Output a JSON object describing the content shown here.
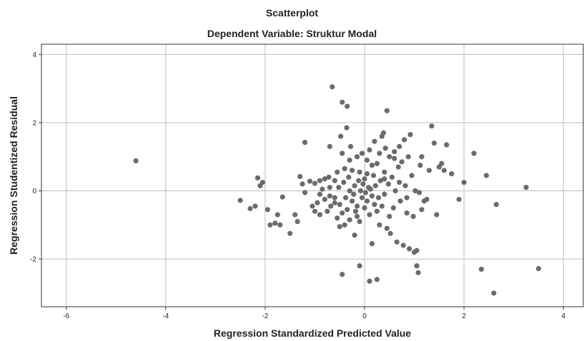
{
  "chart_data": {
    "type": "scatter",
    "title": "Scatterplot",
    "subtitle": "Dependent Variable: Struktur Modal",
    "xlabel": "Regression Standardized Predicted Value",
    "ylabel": "Regression Studentized Residual",
    "xlim": [
      -6.5,
      4.4
    ],
    "ylim": [
      -3.4,
      4.3
    ],
    "x_ticks": [
      -6,
      -4,
      -2,
      0,
      2,
      4
    ],
    "y_ticks": [
      -2,
      0,
      2,
      4
    ],
    "grid": true,
    "point_color": "#6b6b6b",
    "points": [
      [
        -4.6,
        0.88
      ],
      [
        -2.5,
        -0.28
      ],
      [
        -2.3,
        -0.52
      ],
      [
        -2.2,
        -0.45
      ],
      [
        -2.15,
        0.38
      ],
      [
        -2.1,
        0.15
      ],
      [
        -2.05,
        0.25
      ],
      [
        -1.95,
        -0.55
      ],
      [
        -1.9,
        -1.0
      ],
      [
        -1.8,
        -0.95
      ],
      [
        -1.75,
        -0.7
      ],
      [
        -1.7,
        -1.0
      ],
      [
        -1.65,
        -0.18
      ],
      [
        -1.5,
        -1.25
      ],
      [
        -1.4,
        -0.7
      ],
      [
        -1.35,
        -0.9
      ],
      [
        -1.3,
        0.42
      ],
      [
        -1.25,
        0.2
      ],
      [
        -1.2,
        1.42
      ],
      [
        -1.2,
        -0.05
      ],
      [
        -1.1,
        0.28
      ],
      [
        -1.05,
        -0.45
      ],
      [
        -1.0,
        0.22
      ],
      [
        -0.95,
        -0.35
      ],
      [
        -0.9,
        0.3
      ],
      [
        -0.9,
        -0.7
      ],
      [
        -0.85,
        0.05
      ],
      [
        -0.8,
        -0.25
      ],
      [
        -0.8,
        0.35
      ],
      [
        -0.75,
        -0.6
      ],
      [
        -0.72,
        0.4
      ],
      [
        -0.7,
        0.1
      ],
      [
        -0.7,
        1.3
      ],
      [
        -0.68,
        -0.45
      ],
      [
        -0.65,
        3.05
      ],
      [
        -0.6,
        -0.2
      ],
      [
        -0.6,
        0.3
      ],
      [
        -0.55,
        -0.8
      ],
      [
        -0.52,
        0.1
      ],
      [
        -0.5,
        -1.05
      ],
      [
        -0.5,
        -0.4
      ],
      [
        -0.48,
        1.6
      ],
      [
        -0.45,
        2.6
      ],
      [
        -0.45,
        1.1
      ],
      [
        -0.45,
        -0.65
      ],
      [
        -0.42,
        0.25
      ],
      [
        -0.4,
        -1.0
      ],
      [
        -0.4,
        0.65
      ],
      [
        -0.38,
        -0.2
      ],
      [
        -0.36,
        1.85
      ],
      [
        -0.35,
        2.48
      ],
      [
        -0.35,
        -0.55
      ],
      [
        -0.32,
        0.4
      ],
      [
        -0.3,
        -0.85
      ],
      [
        -0.3,
        0.0
      ],
      [
        -0.28,
        1.3
      ],
      [
        -0.25,
        -0.3
      ],
      [
        -0.25,
        0.6
      ],
      [
        -0.22,
        -0.1
      ],
      [
        -0.2,
        -1.3
      ],
      [
        -0.2,
        0.15
      ],
      [
        -0.18,
        -0.6
      ],
      [
        -0.15,
        1.0
      ],
      [
        -0.15,
        -0.45
      ],
      [
        -0.12,
        0.3
      ],
      [
        -0.1,
        -0.9
      ],
      [
        -0.1,
        0.55
      ],
      [
        -0.08,
        0.0
      ],
      [
        -0.05,
        1.1
      ],
      [
        -0.05,
        -0.2
      ],
      [
        -0.03,
        0.2
      ],
      [
        0.0,
        -0.5
      ],
      [
        0.0,
        0.35
      ],
      [
        0.02,
        -0.05
      ],
      [
        0.05,
        0.9
      ],
      [
        0.05,
        -0.3
      ],
      [
        0.08,
        0.1
      ],
      [
        0.1,
        -0.7
      ],
      [
        0.1,
        1.2
      ],
      [
        0.12,
        0.05
      ],
      [
        0.15,
        -0.15
      ],
      [
        0.15,
        -1.55
      ],
      [
        0.18,
        0.45
      ],
      [
        0.2,
        -0.4
      ],
      [
        0.2,
        1.45
      ],
      [
        0.22,
        0.15
      ],
      [
        0.25,
        -0.6
      ],
      [
        0.25,
        0.8
      ],
      [
        0.28,
        -0.2
      ],
      [
        0.3,
        1.1
      ],
      [
        0.3,
        -1.0
      ],
      [
        0.32,
        0.3
      ],
      [
        0.35,
        -0.45
      ],
      [
        0.35,
        1.6
      ],
      [
        0.38,
        1.7
      ],
      [
        0.4,
        -0.1
      ],
      [
        0.4,
        0.55
      ],
      [
        0.42,
        1.25
      ],
      [
        0.45,
        -1.1
      ],
      [
        0.45,
        2.35
      ],
      [
        0.48,
        0.2
      ],
      [
        0.5,
        -0.75
      ],
      [
        0.5,
        1.0
      ],
      [
        0.52,
        -1.25
      ],
      [
        0.55,
        0.4
      ],
      [
        0.58,
        -0.5
      ],
      [
        0.6,
        1.15
      ],
      [
        0.62,
        0.0
      ],
      [
        0.65,
        -1.5
      ],
      [
        0.68,
        0.7
      ],
      [
        0.7,
        1.3
      ],
      [
        0.72,
        -0.3
      ],
      [
        0.75,
        0.85
      ],
      [
        0.78,
        -1.6
      ],
      [
        0.8,
        1.5
      ],
      [
        0.82,
        0.15
      ],
      [
        0.85,
        -0.65
      ],
      [
        0.88,
        1.0
      ],
      [
        0.9,
        -1.7
      ],
      [
        0.92,
        1.65
      ],
      [
        0.95,
        0.45
      ],
      [
        0.98,
        -0.75
      ],
      [
        1.0,
        -1.8
      ],
      [
        1.02,
        0.0
      ],
      [
        1.05,
        -2.2
      ],
      [
        1.05,
        -1.75
      ],
      [
        1.08,
        -2.4
      ],
      [
        1.1,
        -0.05
      ],
      [
        1.12,
        0.75
      ],
      [
        1.15,
        1.0
      ],
      [
        1.2,
        -0.3
      ],
      [
        1.25,
        -0.25
      ],
      [
        1.3,
        0.6
      ],
      [
        1.35,
        1.9
      ],
      [
        1.4,
        1.4
      ],
      [
        1.45,
        -0.7
      ],
      [
        1.5,
        0.7
      ],
      [
        1.55,
        0.8
      ],
      [
        1.6,
        0.6
      ],
      [
        1.65,
        1.35
      ],
      [
        1.75,
        0.5
      ],
      [
        1.9,
        -0.25
      ],
      [
        2.0,
        0.25
      ],
      [
        2.2,
        1.1
      ],
      [
        2.35,
        -2.3
      ],
      [
        2.45,
        0.45
      ],
      [
        2.6,
        -3.0
      ],
      [
        2.65,
        -0.4
      ],
      [
        3.25,
        0.1
      ],
      [
        3.5,
        -2.28
      ],
      [
        -0.45,
        -2.45
      ],
      [
        -0.1,
        -2.2
      ],
      [
        0.1,
        -2.65
      ],
      [
        0.25,
        -2.6
      ],
      [
        -0.6,
        -0.35
      ],
      [
        -0.15,
        -0.75
      ],
      [
        0.6,
        0.95
      ],
      [
        0.4,
        0.35
      ],
      [
        -0.55,
        0.55
      ],
      [
        0.15,
        0.75
      ],
      [
        0.85,
        -0.2
      ],
      [
        -0.9,
        -0.1
      ],
      [
        1.15,
        -0.55
      ],
      [
        -0.3,
        0.9
      ],
      [
        0.05,
        0.5
      ],
      [
        -0.7,
        -0.15
      ],
      [
        0.7,
        0.25
      ],
      [
        -1.0,
        -0.6
      ]
    ]
  }
}
